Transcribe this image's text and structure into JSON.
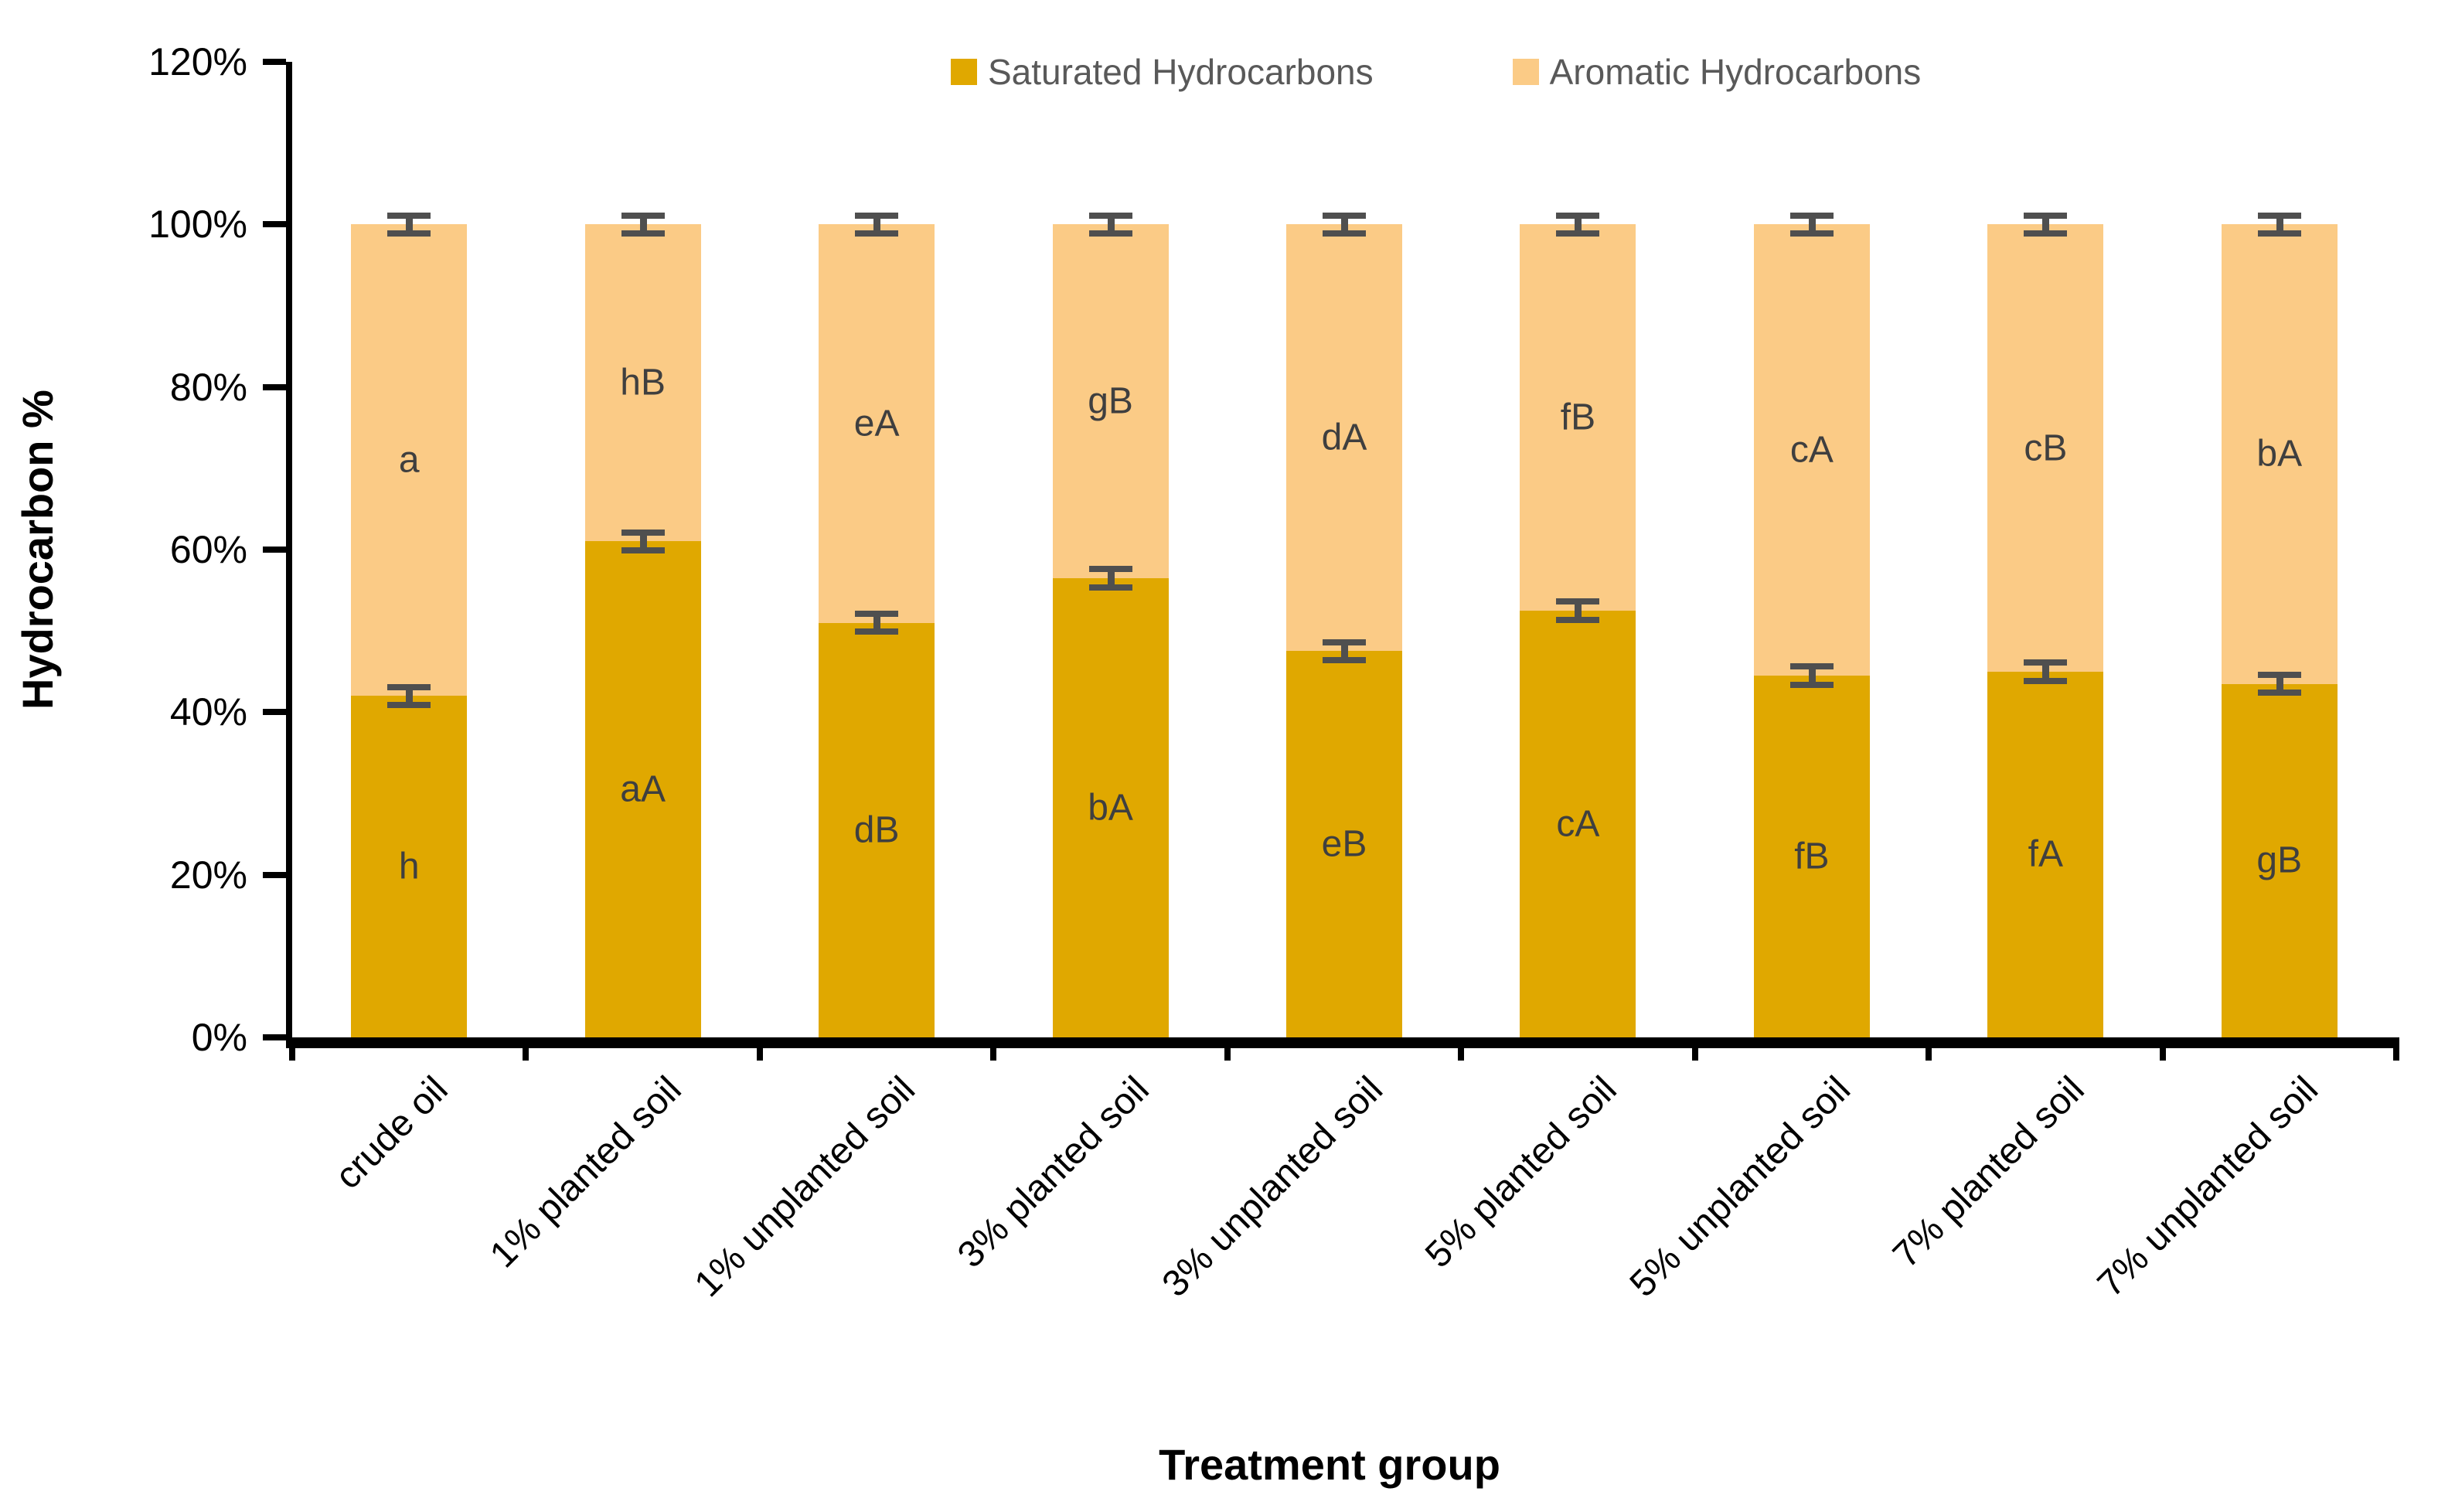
{
  "chart_data": {
    "type": "bar",
    "subtype": "stacked-percent-column",
    "title": "",
    "xlabel": "Treatment group",
    "ylabel": "Hydrocarbon %",
    "categories": [
      "crude oil",
      "1% planted soil",
      "1% unplanted soil",
      "3% planted soil",
      "3% unplanted soil",
      "5% planted soil",
      "5% unplanted soil",
      "7% planted soil",
      "7% unplanted soil"
    ],
    "series": [
      {
        "name": "Saturated Hydrocarbons",
        "color": "#E0A800",
        "values": [
          42,
          61,
          51,
          56.5,
          47.5,
          52.5,
          44.5,
          45,
          43.5
        ],
        "labels": [
          "h",
          "aA",
          "dB",
          "bA",
          "eB",
          "cA",
          "fB",
          "fA",
          "gB"
        ],
        "label_color": "#3f3f3f"
      },
      {
        "name": "Aromatic Hydrocarbons",
        "color": "#FBCB86",
        "values": [
          58,
          39,
          49,
          43.5,
          52.5,
          47.5,
          55.5,
          55,
          56.5
        ],
        "labels": [
          "a",
          "hB",
          "eA",
          "gB",
          "dA",
          "fB",
          "cA",
          "cB",
          "bA"
        ],
        "label_color": "#3f3f3f"
      }
    ],
    "y_axis": {
      "min": 0,
      "max": 120,
      "step": 20,
      "ticks": [
        {
          "value": 0,
          "label": "0%"
        },
        {
          "value": 20,
          "label": "20%"
        },
        {
          "value": 40,
          "label": "40%"
        },
        {
          "value": 60,
          "label": "60%"
        },
        {
          "value": 80,
          "label": "80%"
        },
        {
          "value": 100,
          "label": "100%"
        },
        {
          "value": 120,
          "label": "120%"
        }
      ]
    },
    "error_bars": {
      "color": "#4f4f4f",
      "half_extent_pct": 1.5,
      "shown_at": [
        "segment-boundary",
        "bar-total"
      ]
    },
    "legend": {
      "position": "top",
      "entries": [
        "Saturated Hydrocarbons",
        "Aromatic Hydrocarbons"
      ],
      "text_color": "#595959"
    }
  }
}
